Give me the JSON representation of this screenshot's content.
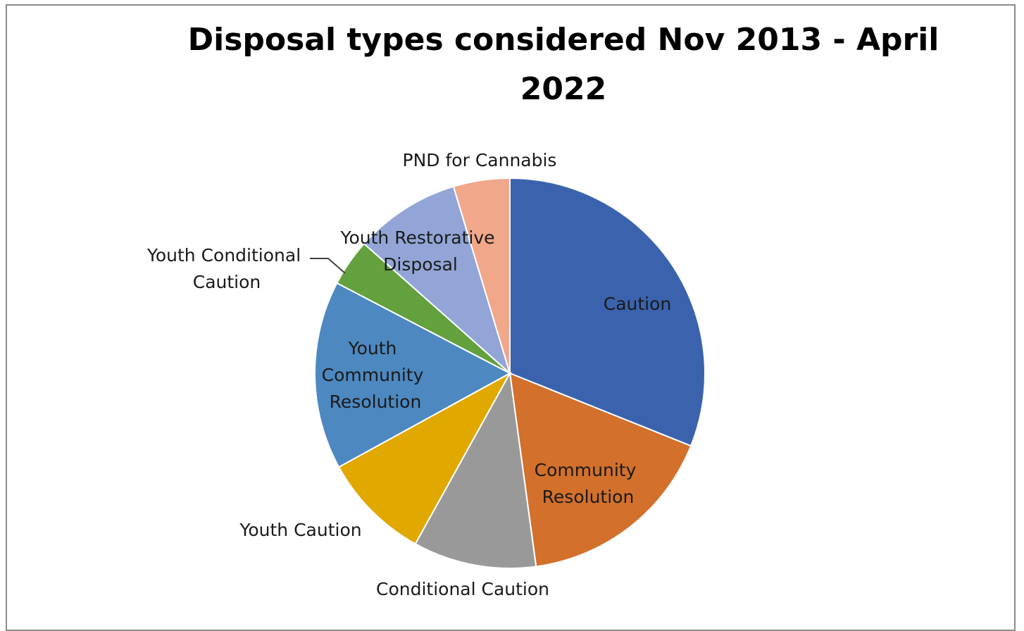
{
  "chart_data": {
    "type": "pie",
    "title": "Disposal types considered Nov 2013 - April 2022",
    "start_angle_deg": 0,
    "direction": "clockwise",
    "slices": [
      {
        "label": "Caution",
        "value": 32.6,
        "color": "#3b63ad"
      },
      {
        "label": "Community Resolution",
        "value": 17.6,
        "color": "#d2702c"
      },
      {
        "label": "Conditional Caution",
        "value": 10.7,
        "color": "#999999"
      },
      {
        "label": "Youth Caution",
        "value": 9.4,
        "color": "#e1a800"
      },
      {
        "label": "Youth Community Resolution",
        "value": 16.4,
        "color": "#4d88c0"
      },
      {
        "label": "Youth Conditional Caution",
        "value": 4.1,
        "color": "#63a03e"
      },
      {
        "label": "Youth Restorative Disposal",
        "value": 9.2,
        "color": "#92a5d6"
      },
      {
        "label": "PND for Cannabis",
        "value": 4.9,
        "color": "#f0a78a"
      }
    ]
  }
}
